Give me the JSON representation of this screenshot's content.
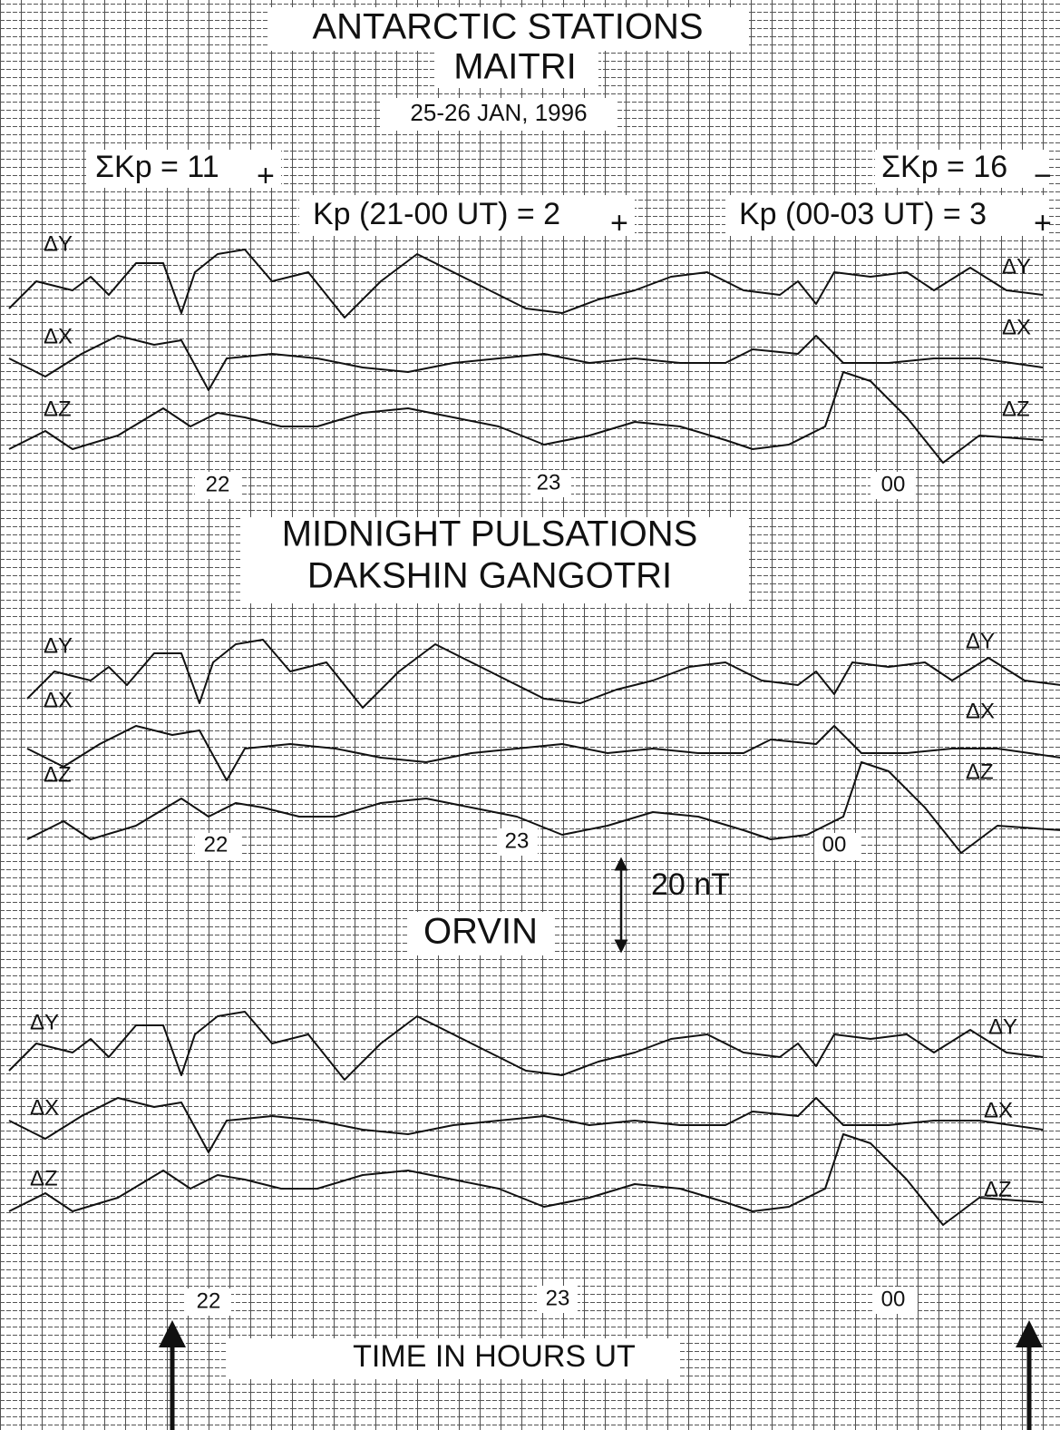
{
  "header": {
    "title": "ANTARCTIC STATIONS",
    "date": "25-26 JAN, 1996",
    "kp_left": {
      "sum": "ΣKp = 11",
      "sum_sign": "+",
      "range": "Kp (21-00 UT) = 2",
      "range_sign": "+"
    },
    "kp_right": {
      "sum": "ΣKp = 16",
      "sum_sign": "−",
      "range": "Kp (00-03 UT) = 3",
      "range_sign": "+"
    }
  },
  "panels": [
    {
      "station": "MAITRI",
      "left_labels": [
        "ΔY",
        "ΔX",
        "ΔZ"
      ],
      "right_labels": [
        "ΔY",
        "ΔX",
        "ΔZ"
      ],
      "hours": [
        "22",
        "23",
        "00"
      ]
    },
    {
      "heading": "MIDNIGHT PULSATIONS",
      "station": "DAKSHIN GANGOTRI",
      "left_labels": [
        "ΔY",
        "ΔX",
        "ΔZ"
      ],
      "right_labels": [
        "ΔY",
        "ΔX",
        "ΔZ"
      ],
      "hours": [
        "22",
        "23",
        "00"
      ],
      "scale": "20 nT"
    },
    {
      "station": "ORVIN",
      "left_labels": [
        "ΔY",
        "ΔX",
        "ΔZ"
      ],
      "right_labels": [
        "ΔY",
        "ΔX",
        "ΔZ"
      ],
      "hours": [
        "22",
        "23",
        "00"
      ]
    }
  ],
  "footer": {
    "axis_label": "TIME IN HOURS UT"
  }
}
